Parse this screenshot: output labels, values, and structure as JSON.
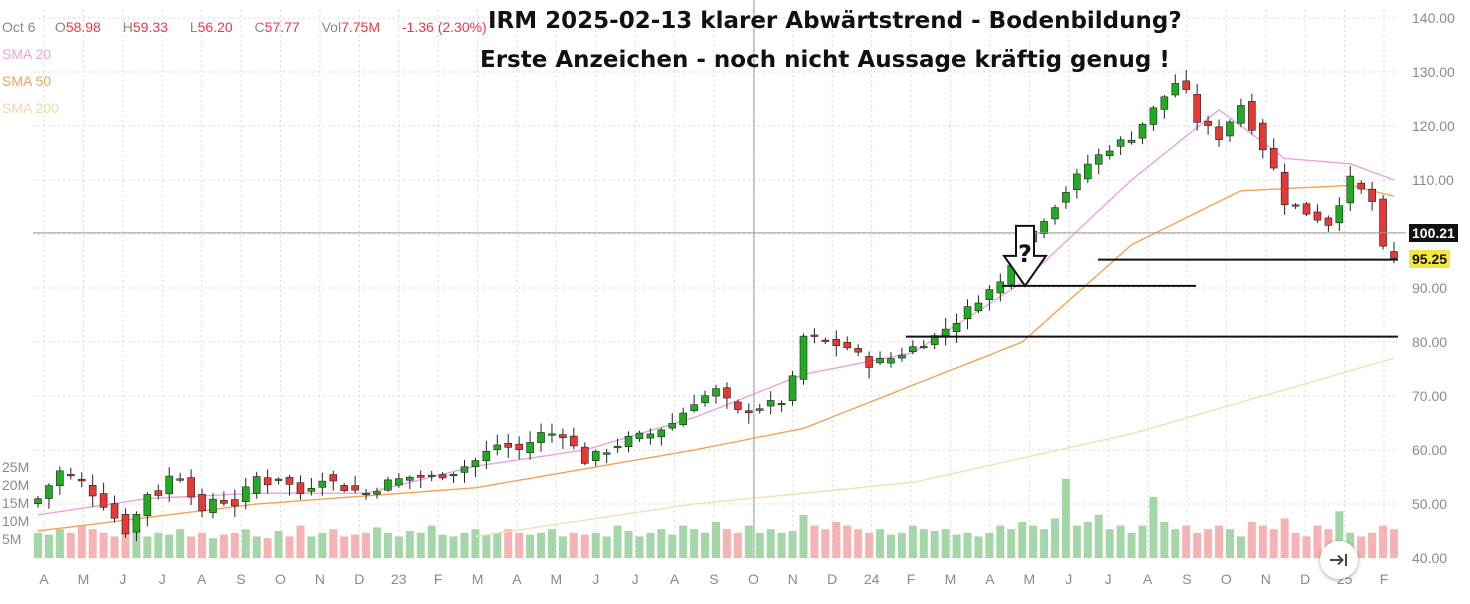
{
  "header": {
    "date": "Oct 6",
    "o_label": "O",
    "o_value": "58.98",
    "h_label": "H",
    "h_value": "59.33",
    "l_label": "L",
    "l_value": "56.20",
    "c_label": "C",
    "c_value": "57.77",
    "vol_label": "Vol",
    "vol_value": "7.75M",
    "change": "-1.36 (2.30%)"
  },
  "legend": {
    "sma20": "SMA 20",
    "sma50": "SMA 50",
    "sma200": "SMA 200"
  },
  "annotation": {
    "title_line1": "IRM 2025-02-13  klarer Abwärtstrend - Bodenbildung?",
    "title_line2": "Erste Anzeichen - noch nicht Aussage kräftig genug !",
    "question_mark": "?"
  },
  "price_badges": {
    "crosshair": "100.21",
    "last": "95.25"
  },
  "colors": {
    "up": "#22ab22",
    "down": "#e53935",
    "vol_up": "#a5d6a7",
    "vol_down": "#f5b3b3",
    "sma20": "#e8a3e3",
    "sma50": "#f2a35a",
    "sma200": "#f5deb3",
    "grid": "#d9d9d9",
    "badge_last": "#f5e642",
    "badge_cross": "#111111"
  },
  "jump_button_icon": "jump-to-latest-icon",
  "chart_data": {
    "type": "candlestick",
    "interval": "weekly",
    "y_axis": {
      "ticks": [
        "140.00",
        "130.00",
        "120.00",
        "110.00",
        "100.00",
        "90.00",
        "80.00",
        "70.00",
        "60.00",
        "50.00",
        "40.00"
      ],
      "ylim": [
        40,
        140
      ]
    },
    "volume_axis": {
      "ticks": [
        "25M",
        "20M",
        "15M",
        "10M",
        "5M"
      ]
    },
    "x_axis": {
      "labels": [
        "A",
        "M",
        "J",
        "J",
        "A",
        "S",
        "O",
        "N",
        "D",
        "23",
        "F",
        "M",
        "A",
        "M",
        "J",
        "J",
        "A",
        "S",
        "O",
        "N",
        "D",
        "24",
        "F",
        "M",
        "A",
        "M",
        "J",
        "J",
        "A",
        "S",
        "O",
        "N",
        "D",
        "25",
        "F"
      ]
    },
    "horizontal_lines": [
      {
        "price": 95.25,
        "from_label_index": 30,
        "to_label_index": 34
      },
      {
        "price": 90.4,
        "from_label_index": 26,
        "to_label_index": 31
      },
      {
        "price": 81.0,
        "from_label_index": 24,
        "to_label_index": 34
      }
    ],
    "crosshair": {
      "price": 100.21,
      "at_label_index": 19
    },
    "arrow_annotation": {
      "near_label_index": 26,
      "price": 90.4,
      "direction": "down"
    },
    "series_close_anchors": [
      [
        0,
        51
      ],
      [
        2,
        56
      ],
      [
        4,
        54
      ],
      [
        6,
        50
      ],
      [
        8,
        45
      ],
      [
        9,
        48
      ],
      [
        10,
        52
      ],
      [
        11,
        52
      ],
      [
        12,
        55
      ],
      [
        13,
        55
      ],
      [
        14,
        52
      ],
      [
        15,
        48
      ],
      [
        16,
        51
      ],
      [
        18,
        50
      ],
      [
        20,
        55
      ],
      [
        21,
        54
      ],
      [
        22,
        55
      ],
      [
        24,
        52
      ],
      [
        26,
        55
      ],
      [
        28,
        53
      ],
      [
        30,
        52
      ],
      [
        32,
        54
      ],
      [
        34,
        55
      ],
      [
        36,
        55
      ],
      [
        38,
        56
      ],
      [
        40,
        58
      ],
      [
        42,
        61
      ],
      [
        44,
        60
      ],
      [
        46,
        63
      ],
      [
        48,
        63
      ],
      [
        50,
        58
      ],
      [
        52,
        60
      ],
      [
        54,
        62
      ],
      [
        56,
        63
      ],
      [
        58,
        65
      ],
      [
        60,
        69
      ],
      [
        62,
        71
      ],
      [
        64,
        67
      ],
      [
        66,
        68
      ],
      [
        68,
        69
      ],
      [
        69,
        73
      ],
      [
        70,
        81
      ],
      [
        72,
        80
      ],
      [
        74,
        79
      ],
      [
        76,
        76
      ],
      [
        78,
        77
      ],
      [
        80,
        79
      ],
      [
        82,
        81
      ],
      [
        84,
        84
      ],
      [
        86,
        88
      ],
      [
        88,
        91
      ],
      [
        89,
        95
      ],
      [
        90,
        98
      ],
      [
        92,
        103
      ],
      [
        94,
        108
      ],
      [
        96,
        113
      ],
      [
        98,
        116
      ],
      [
        100,
        118
      ],
      [
        102,
        123
      ],
      [
        104,
        128
      ],
      [
        105,
        126
      ],
      [
        106,
        121
      ],
      [
        108,
        118
      ],
      [
        110,
        124
      ],
      [
        112,
        116
      ],
      [
        113,
        112
      ],
      [
        114,
        106
      ],
      [
        116,
        104
      ],
      [
        118,
        102
      ],
      [
        120,
        110
      ],
      [
        122,
        106
      ],
      [
        123,
        97
      ],
      [
        124,
        95.25
      ]
    ],
    "sma20_anchors": [
      [
        0,
        48
      ],
      [
        10,
        51
      ],
      [
        20,
        52
      ],
      [
        30,
        52
      ],
      [
        40,
        57
      ],
      [
        50,
        60
      ],
      [
        60,
        66
      ],
      [
        70,
        74
      ],
      [
        80,
        78
      ],
      [
        90,
        91
      ],
      [
        100,
        110
      ],
      [
        108,
        123
      ],
      [
        114,
        114
      ],
      [
        120,
        113
      ],
      [
        124,
        110
      ]
    ],
    "sma50_anchors": [
      [
        0,
        45
      ],
      [
        20,
        50
      ],
      [
        40,
        53
      ],
      [
        60,
        60
      ],
      [
        70,
        64
      ],
      [
        80,
        72
      ],
      [
        90,
        80
      ],
      [
        100,
        98
      ],
      [
        110,
        108
      ],
      [
        120,
        109
      ],
      [
        124,
        107
      ]
    ],
    "sma200_anchors": [
      [
        40,
        44
      ],
      [
        60,
        50
      ],
      [
        80,
        54
      ],
      [
        100,
        63
      ],
      [
        124,
        77
      ]
    ],
    "volume_pattern_m": [
      7.0,
      6.5,
      8,
      7,
      9,
      8,
      7,
      6,
      7.5,
      8,
      6,
      7,
      6.5,
      8,
      6,
      7,
      5.5,
      6.5,
      7,
      8,
      6,
      5.5,
      7.5,
      6,
      9,
      6,
      7,
      8,
      6,
      6.5,
      7,
      8.5,
      7,
      6,
      7.5,
      7,
      9,
      6.5,
      6,
      7,
      8,
      6.5,
      7,
      8,
      7,
      6.5,
      7,
      8,
      6,
      7,
      6.5,
      7,
      6,
      9,
      7.5,
      6,
      7,
      8,
      6.5,
      9,
      8,
      7,
      10,
      8,
      7,
      9,
      7,
      8,
      7,
      7.5,
      12,
      9,
      8,
      10,
      9,
      8,
      7,
      8,
      6.5,
      7,
      9,
      8,
      7.5,
      8,
      6.5,
      7,
      6,
      7,
      9,
      8,
      10,
      9,
      8,
      11,
      22,
      9,
      10,
      12,
      8,
      9,
      7,
      9,
      17,
      10,
      8,
      9,
      7,
      8,
      9,
      8,
      6,
      10,
      9,
      8,
      11,
      7,
      6,
      9,
      8,
      13,
      7,
      6,
      7,
      9,
      8,
      12,
      7,
      10,
      9
    ]
  }
}
